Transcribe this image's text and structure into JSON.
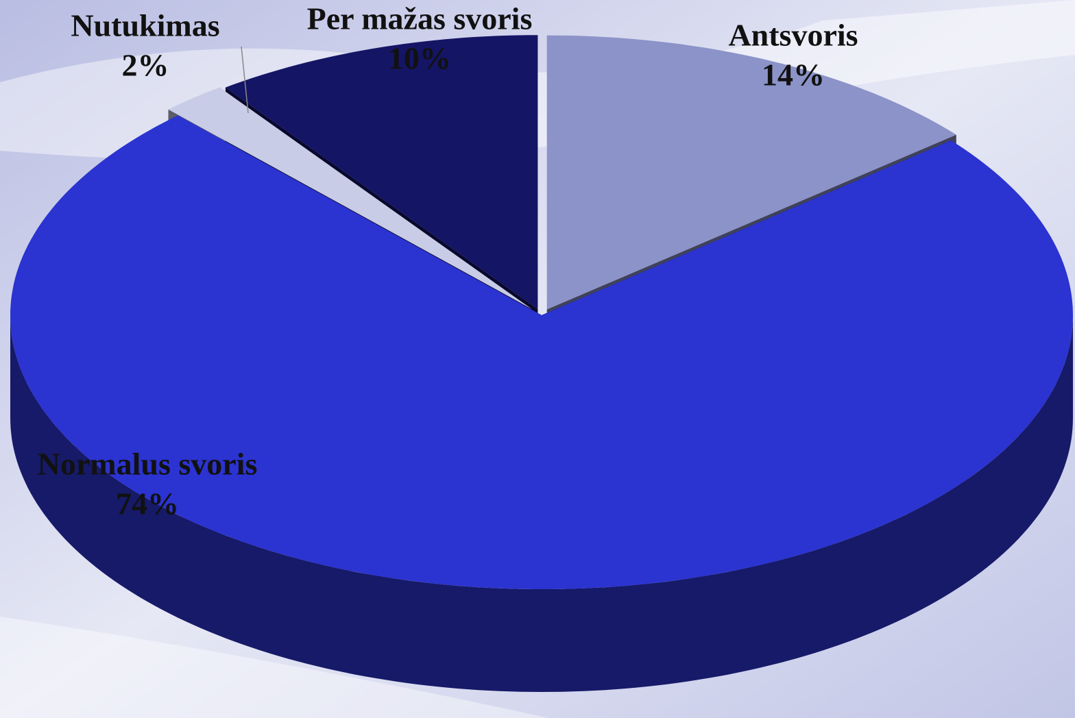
{
  "chart_data": {
    "type": "pie3d",
    "categories": [
      "Antsvoris",
      "Normalus svoris",
      "Nutukimas",
      "Per mažas svoris"
    ],
    "values": [
      14,
      74,
      2,
      10
    ],
    "value_labels": [
      "14%",
      "74%",
      "2%",
      "10%"
    ],
    "colors": [
      "#8b93c8",
      "#2b33d0",
      "#c8cce6",
      "#151566"
    ]
  }
}
